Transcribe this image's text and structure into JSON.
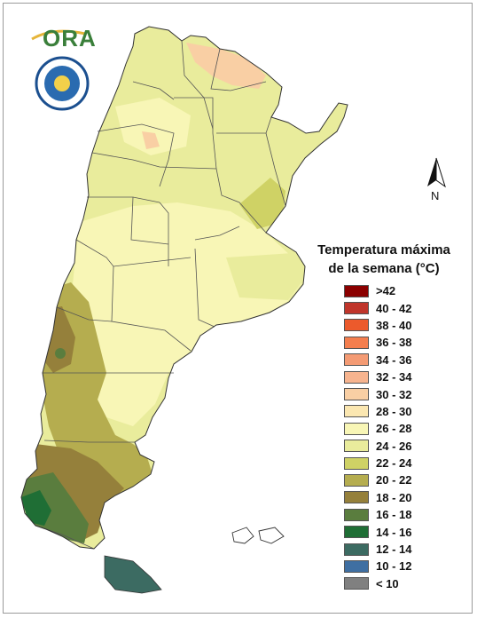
{
  "logo": {
    "text": "ORA",
    "icon": "ora-sun-logo"
  },
  "seal": {
    "icon": "smn-seal-emblem"
  },
  "compass": {
    "label": "N",
    "icon": "north-arrow-icon"
  },
  "legend": {
    "title_line1": "Temperatura máxima",
    "title_line2": "de la semana (°C)",
    "items": [
      {
        "label": ">42",
        "color": "#8b0000"
      },
      {
        "label": "40 - 42",
        "color": "#c0352b"
      },
      {
        "label": "38 - 40",
        "color": "#ec5a2c"
      },
      {
        "label": "36 - 38",
        "color": "#f47e4e"
      },
      {
        "label": "34 - 36",
        "color": "#f49b74"
      },
      {
        "label": "32 - 34",
        "color": "#f7b48f"
      },
      {
        "label": "30 - 32",
        "color": "#f9cfa4"
      },
      {
        "label": "28 - 30",
        "color": "#fbe7b1"
      },
      {
        "label": "26 - 28",
        "color": "#f8f6b6"
      },
      {
        "label": "24 - 26",
        "color": "#e9ec9c"
      },
      {
        "label": "22 - 24",
        "color": "#cfd265"
      },
      {
        "label": "20 - 22",
        "color": "#b5ad4f"
      },
      {
        "label": "18 - 20",
        "color": "#95803b"
      },
      {
        "label": "16 - 18",
        "color": "#5a7d3e"
      },
      {
        "label": "14 - 16",
        "color": "#1f6e35"
      },
      {
        "label": "12 - 14",
        "color": "#3c6b62"
      },
      {
        "label": "10 - 12",
        "color": "#3f6fa2"
      },
      {
        "label": "< 10",
        "color": "#808080"
      }
    ]
  }
}
